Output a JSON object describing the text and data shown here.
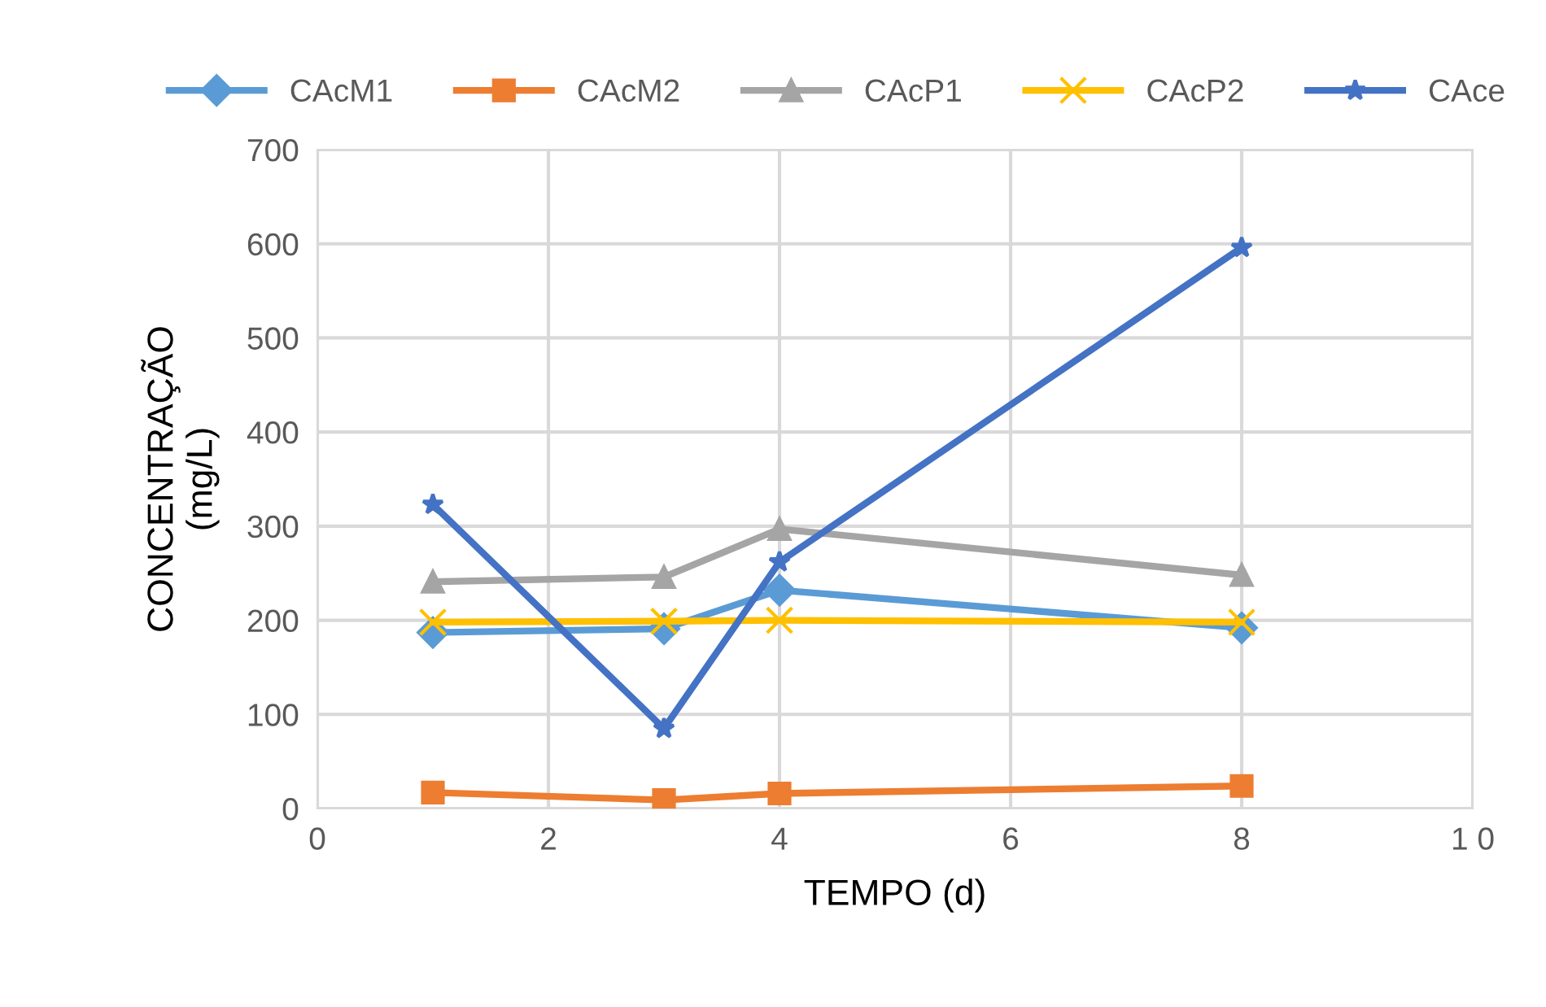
{
  "chart_data": {
    "type": "line",
    "xlabel": "TEMPO (d)",
    "ylabel": "CONCENTRAÇÃO\n(mg/L)",
    "x": [
      1,
      3,
      4,
      8
    ],
    "series": [
      {
        "name": "CAcM1",
        "color": "#5b9bd5",
        "marker": "diamond",
        "values": [
          187,
          191,
          232,
          192
        ]
      },
      {
        "name": "CAcM2",
        "color": "#ed7d31",
        "marker": "square",
        "values": [
          17,
          9,
          16,
          24
        ]
      },
      {
        "name": "CAcP1",
        "color": "#a5a5a5",
        "marker": "triangle",
        "values": [
          241,
          246,
          297,
          248
        ]
      },
      {
        "name": "CAcP2",
        "color": "#ffc000",
        "marker": "cross",
        "values": [
          198,
          199,
          200,
          198
        ]
      },
      {
        "name": "CAce",
        "color": "#4472c4",
        "marker": "star",
        "values": [
          323,
          85,
          262,
          596
        ]
      }
    ],
    "xlim": [
      0,
      10
    ],
    "xticks": [
      0,
      2,
      4,
      6,
      8,
      {
        "value": 10,
        "label": "1 0"
      }
    ],
    "ylim": [
      0,
      700
    ],
    "yticks": [
      0,
      100,
      200,
      300,
      400,
      500,
      600,
      700
    ],
    "grid": true,
    "legend": "top",
    "line_style": "solid"
  }
}
